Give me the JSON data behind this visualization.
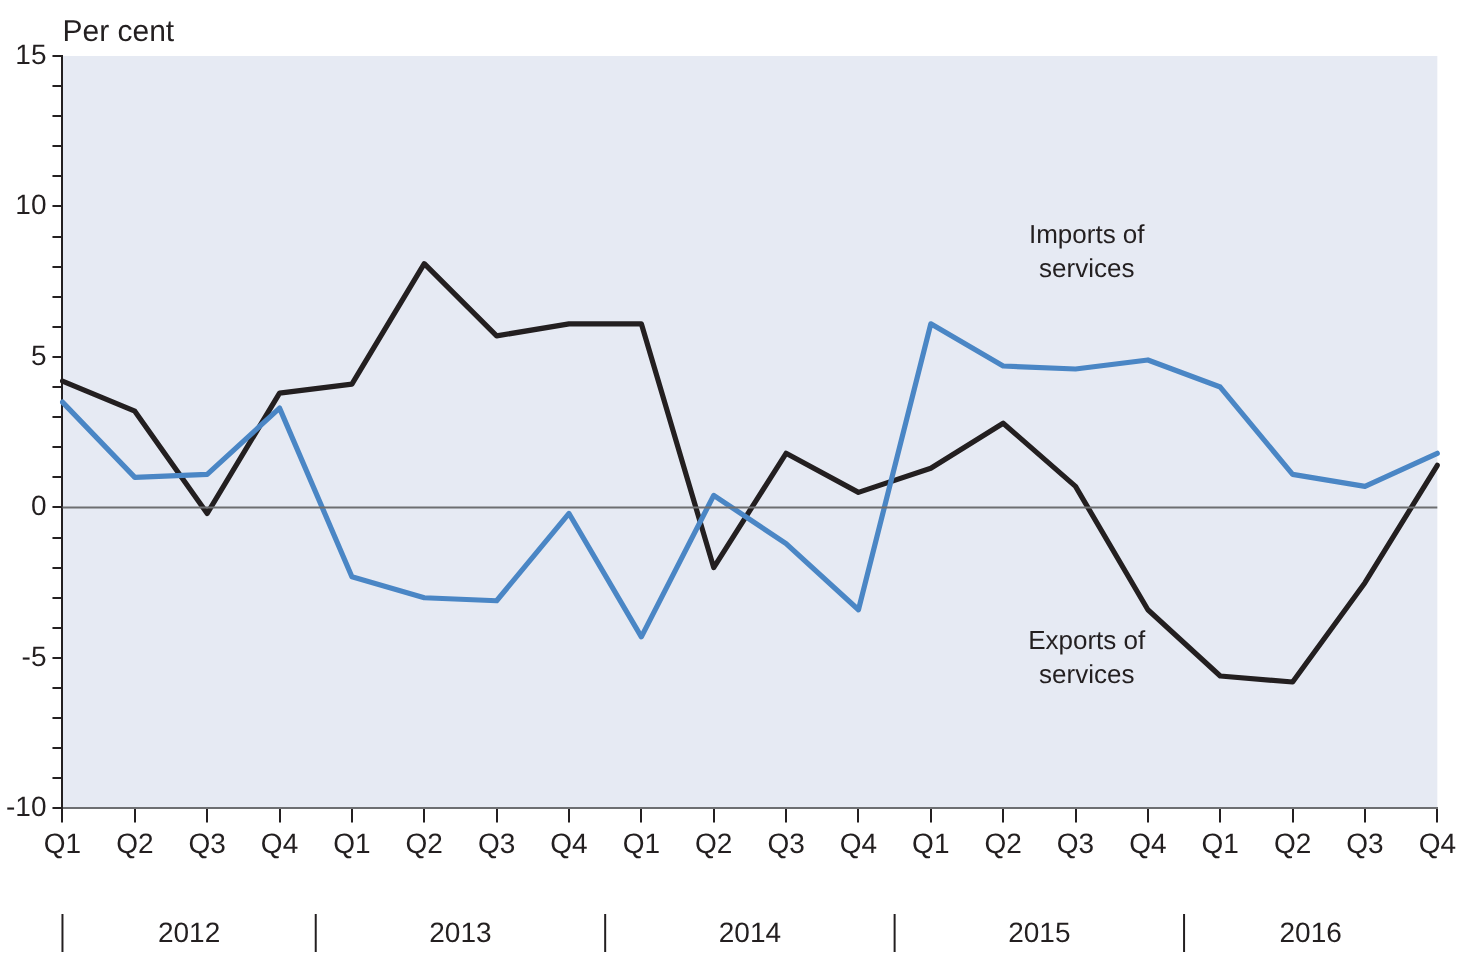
{
  "chart_data": {
    "type": "line",
    "ylabel": "Per cent",
    "categories": [
      "Q1",
      "Q2",
      "Q3",
      "Q4",
      "Q1",
      "Q2",
      "Q3",
      "Q4",
      "Q1",
      "Q2",
      "Q3",
      "Q4",
      "Q1",
      "Q2",
      "Q3",
      "Q4",
      "Q1",
      "Q2",
      "Q3",
      "Q4"
    ],
    "series": [
      {
        "name": "Imports of services",
        "color": "#4a86c5",
        "values": [
          3.5,
          1.0,
          1.1,
          3.3,
          -2.3,
          -3.0,
          -3.1,
          -0.2,
          -4.3,
          0.4,
          -1.2,
          -3.4,
          6.1,
          4.7,
          4.6,
          4.9,
          4.0,
          1.1,
          0.7,
          1.8
        ]
      },
      {
        "name": "Exports of services",
        "color": "#231f20",
        "values": [
          4.2,
          3.2,
          -0.2,
          3.8,
          4.1,
          8.1,
          5.7,
          6.1,
          6.1,
          -2.0,
          1.8,
          0.5,
          1.3,
          2.8,
          0.7,
          -3.4,
          -5.6,
          -5.8,
          -2.5,
          1.4
        ]
      }
    ],
    "ylim": [
      -10,
      15
    ],
    "yticks": [
      -10,
      {
        "value": -9,
        "label": null
      },
      {
        "value": -8,
        "label": null
      },
      {
        "value": -7,
        "label": null
      },
      {
        "value": -6,
        "label": null
      },
      -5,
      {
        "value": -4,
        "label": null
      },
      {
        "value": -3,
        "label": null
      },
      {
        "value": -2,
        "label": null
      },
      {
        "value": -1,
        "label": null
      },
      0,
      {
        "value": 1,
        "label": null
      },
      {
        "value": 2,
        "label": null
      },
      {
        "value": 3,
        "label": null
      },
      {
        "value": 4,
        "label": null
      },
      5,
      {
        "value": 6,
        "label": null
      },
      {
        "value": 7,
        "label": null
      },
      {
        "value": 8,
        "label": null
      },
      {
        "value": 9,
        "label": null
      },
      10,
      {
        "value": 11,
        "label": null
      },
      {
        "value": 12,
        "label": null
      },
      {
        "value": 13,
        "label": null
      },
      {
        "value": 14,
        "label": null
      },
      15
    ],
    "ref_lines": [
      {
        "axis": "y",
        "value": 0,
        "color": "#6d6e71"
      }
    ],
    "annotations": [
      "2012",
      "2013",
      "2014",
      "2015",
      "2016"
    ],
    "grid": false,
    "legend": false,
    "marker": "none",
    "line_style": "solid"
  }
}
